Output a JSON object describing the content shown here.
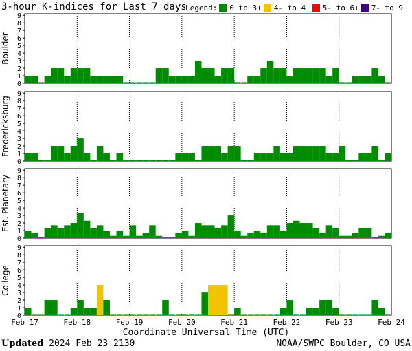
{
  "title": "3-hour K-indices for Last 7 days",
  "legend": {
    "label": "Legend:",
    "items": [
      {
        "label": "0 to 3+",
        "color": "#008c00"
      },
      {
        "label": "4- to 4+",
        "color": "#f2c300"
      },
      {
        "label": "5- to 6+",
        "color": "#ff0000"
      },
      {
        "label": "7- to 9",
        "color": "#400080"
      }
    ]
  },
  "footer": {
    "updated_label": "Updated",
    "updated_value": "2024 Feb 23 2130",
    "source": "NOAA/SWPC Boulder, CO USA"
  },
  "chart_data": {
    "type": "bar",
    "xlabel": "Coordinate Universal Time (UTC)",
    "x_ticks": [
      "Feb 17",
      "Feb 18",
      "Feb 19",
      "Feb 20",
      "Feb 21",
      "Feb 22",
      "Feb 23",
      "Feb 24"
    ],
    "ylim": [
      0,
      9
    ],
    "y_ticks": [
      0,
      1,
      2,
      3,
      4,
      5,
      6,
      7,
      8,
      9
    ],
    "bins_per_day": 8,
    "panels": [
      {
        "name": "Boulder",
        "values": [
          1,
          1,
          0,
          1,
          2,
          2,
          1,
          2,
          2,
          2,
          1,
          1,
          1,
          1,
          1,
          0,
          0,
          0,
          0,
          0,
          2,
          2,
          1,
          1,
          1,
          1,
          3,
          2,
          2,
          1,
          2,
          2,
          0,
          0,
          1,
          1,
          2,
          3,
          2,
          2,
          1,
          2,
          2,
          2,
          2,
          2,
          1,
          2,
          0,
          0,
          1,
          1,
          1,
          2,
          1,
          0
        ]
      },
      {
        "name": "Fredericksburg",
        "values": [
          1,
          1,
          0,
          0,
          2,
          2,
          1,
          2,
          3,
          1,
          0,
          2,
          1,
          0,
          1,
          0,
          0,
          0,
          0,
          0,
          0,
          0,
          0,
          1,
          1,
          1,
          0,
          2,
          2,
          2,
          1,
          2,
          2,
          0,
          0,
          1,
          1,
          1,
          2,
          1,
          1,
          2,
          2,
          2,
          2,
          2,
          1,
          1,
          2,
          0,
          0,
          1,
          1,
          2,
          0,
          1,
          0
        ]
      },
      {
        "name": "Est. Planetary",
        "values": [
          1,
          0.7,
          0,
          1.3,
          1.7,
          1.3,
          1.7,
          2,
          3.3,
          2.3,
          1.3,
          1.7,
          1,
          0.3,
          1,
          0.3,
          1.7,
          0.3,
          0.7,
          1.7,
          0.3,
          0,
          0,
          0.7,
          1,
          0.3,
          2,
          1.7,
          1.7,
          1.3,
          1.7,
          3,
          1,
          0.3,
          0.7,
          1,
          0.7,
          1.7,
          1.7,
          1,
          2,
          2.3,
          2,
          2,
          1.3,
          0.7,
          1.7,
          1.3,
          0.3,
          0.3,
          0.7,
          1.3,
          1.3,
          0,
          0.3,
          0.7,
          0
        ]
      },
      {
        "name": "College",
        "values": [
          1,
          0,
          0,
          2,
          2,
          0,
          0,
          1,
          2,
          1,
          1,
          4,
          2,
          0,
          0,
          0,
          0,
          0,
          0,
          0,
          0,
          2,
          0,
          0,
          0,
          0,
          0,
          3,
          4,
          4,
          4,
          0,
          1,
          0,
          0,
          0,
          0,
          0,
          0,
          1,
          2,
          0,
          0,
          1,
          1,
          2,
          2,
          1,
          0,
          0,
          0,
          0,
          0,
          2,
          1,
          0,
          0
        ]
      }
    ]
  }
}
